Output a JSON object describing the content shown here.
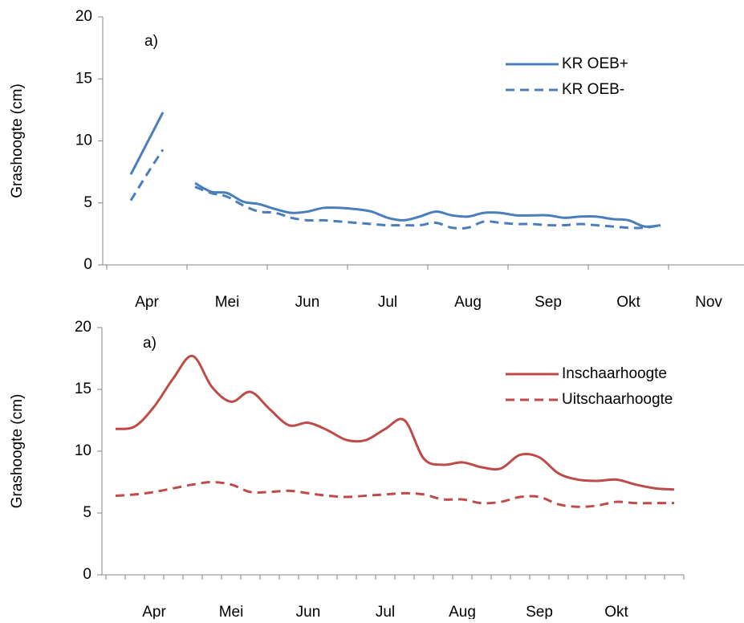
{
  "chart_data": [
    {
      "type": "line",
      "annotation": "a)",
      "y_label": "Grashoogte (cm)",
      "legend": "upper right",
      "categories": [
        null,
        null,
        "Apr",
        null,
        null,
        null,
        null,
        "Mei",
        null,
        null,
        null,
        null,
        "Jun",
        null,
        null,
        null,
        null,
        "Jul",
        null,
        null,
        null,
        null,
        "Aug",
        null,
        null,
        null,
        null,
        "Sep",
        null,
        null,
        null,
        null,
        "Okt",
        null,
        null,
        null,
        null,
        "Nov",
        null,
        null
      ],
      "ylim": [
        0,
        20
      ],
      "yticks": [
        0,
        5,
        10,
        15,
        20
      ],
      "series": [
        {
          "name": "KR OEB+",
          "color": "#4a7ebb",
          "line_style": "solid",
          "values": [
            null,
            7.3,
            9.8,
            12.3,
            null,
            6.6,
            5.9,
            5.8,
            5.1,
            4.9,
            4.5,
            4.2,
            4.3,
            4.6,
            4.6,
            4.5,
            4.3,
            3.8,
            3.6,
            3.9,
            4.3,
            4.0,
            3.9,
            4.2,
            4.2,
            4.0,
            4.0,
            4.0,
            3.8,
            3.9,
            3.9,
            3.7,
            3.6,
            3.1,
            3.2,
            null,
            null,
            null,
            null,
            null
          ]
        },
        {
          "name": "KR OEB-",
          "color": "#4a7ebb",
          "line_style": "dashed",
          "values": [
            null,
            5.2,
            7.3,
            9.3,
            null,
            6.3,
            5.8,
            5.5,
            4.8,
            4.3,
            4.2,
            3.8,
            3.6,
            3.6,
            3.5,
            3.4,
            3.3,
            3.2,
            3.2,
            3.2,
            3.4,
            3.0,
            3.0,
            3.5,
            3.4,
            3.3,
            3.3,
            3.2,
            3.2,
            3.3,
            3.2,
            3.1,
            3.0,
            3.0,
            3.2,
            null,
            null,
            null,
            null,
            null
          ]
        }
      ]
    },
    {
      "type": "line",
      "annotation": "a)",
      "y_label": "Grashoogte (cm)",
      "legend": "upper right",
      "categories": [
        null,
        null,
        "Apr",
        null,
        null,
        null,
        "Mei",
        null,
        null,
        null,
        "Jun",
        null,
        null,
        null,
        "Jul",
        null,
        null,
        null,
        "Aug",
        null,
        null,
        null,
        "Sep",
        null,
        null,
        null,
        "Okt",
        null,
        null,
        null
      ],
      "ylim": [
        0,
        20
      ],
      "yticks": [
        0,
        5,
        10,
        15,
        20
      ],
      "series": [
        {
          "name": "Inschaarhoogte",
          "color": "#be4b48",
          "line_style": "solid",
          "values": [
            11.8,
            12.0,
            13.6,
            15.9,
            17.7,
            15.2,
            14.0,
            14.8,
            13.4,
            12.1,
            12.3,
            11.7,
            10.9,
            10.9,
            11.8,
            12.5,
            9.4,
            8.9,
            9.1,
            8.7,
            8.6,
            9.7,
            9.5,
            8.2,
            7.7,
            7.6,
            7.7,
            7.3,
            7.0,
            6.9
          ]
        },
        {
          "name": "Uitschaarhoogte",
          "color": "#be4b48",
          "line_style": "dashed",
          "values": [
            6.4,
            6.5,
            6.7,
            7.0,
            7.3,
            7.5,
            7.3,
            6.7,
            6.7,
            6.8,
            6.6,
            6.4,
            6.3,
            6.4,
            6.5,
            6.6,
            6.5,
            6.1,
            6.1,
            5.8,
            5.9,
            6.3,
            6.3,
            5.7,
            5.5,
            5.6,
            5.9,
            5.8,
            5.8,
            5.8
          ]
        }
      ]
    }
  ]
}
